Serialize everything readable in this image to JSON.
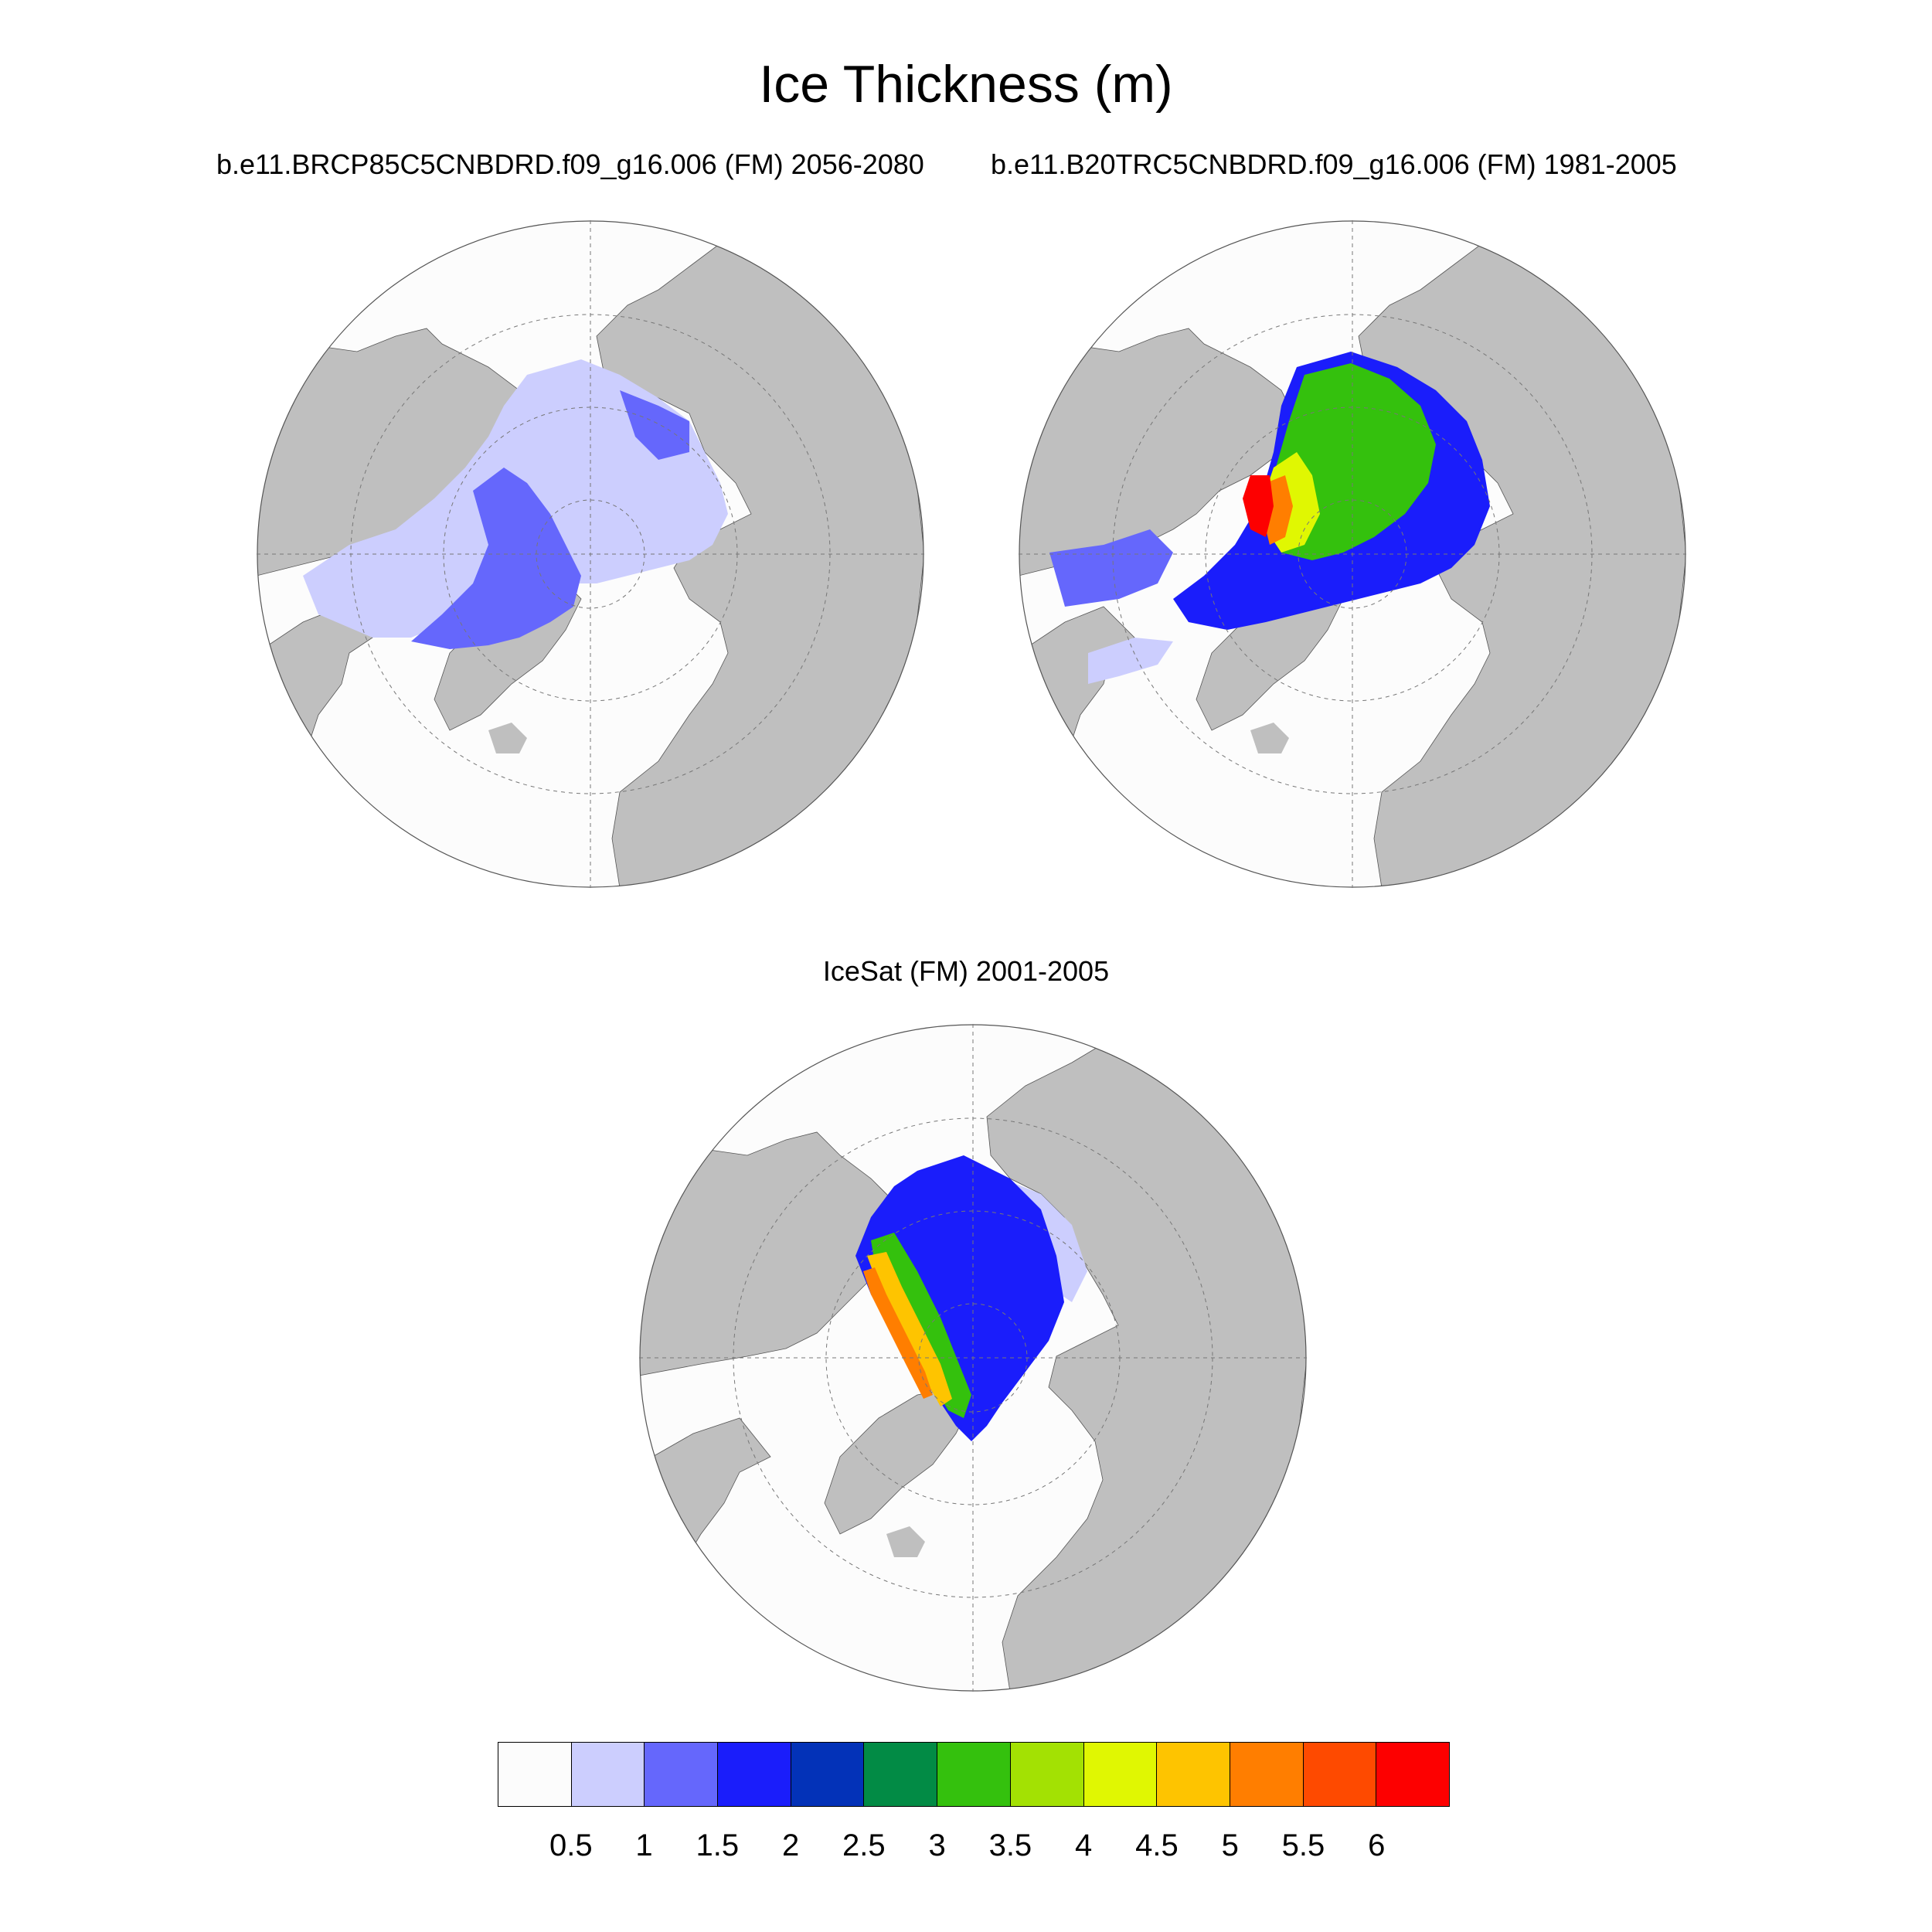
{
  "title": "Ice Thickness (m)",
  "panels": [
    {
      "subtitle": "b.e11.BRCP85C5CNBDRD.f09_g16.006 (FM) 2056-2080"
    },
    {
      "subtitle": "b.e11.B20TRC5CNBDRD.f09_g16.006 (FM) 1981-2005"
    },
    {
      "subtitle": "IceSat (FM) 2001-2005"
    }
  ],
  "colorbar": {
    "colors": [
      "#fcfcfc",
      "#cccefe",
      "#6567fc",
      "#1a1dfb",
      "#0332b8",
      "#028b45",
      "#34c10d",
      "#a3e103",
      "#e0f702",
      "#fec400",
      "#ff7e00",
      "#fe4a00",
      "#fd0000"
    ],
    "labels": [
      "0.5",
      "1",
      "1.5",
      "2",
      "2.5",
      "3",
      "3.5",
      "4",
      "4.5",
      "5",
      "5.5",
      "6"
    ]
  },
  "map_colors": {
    "land": "#bfbfbf",
    "ocean": "#fcfcfc"
  }
}
